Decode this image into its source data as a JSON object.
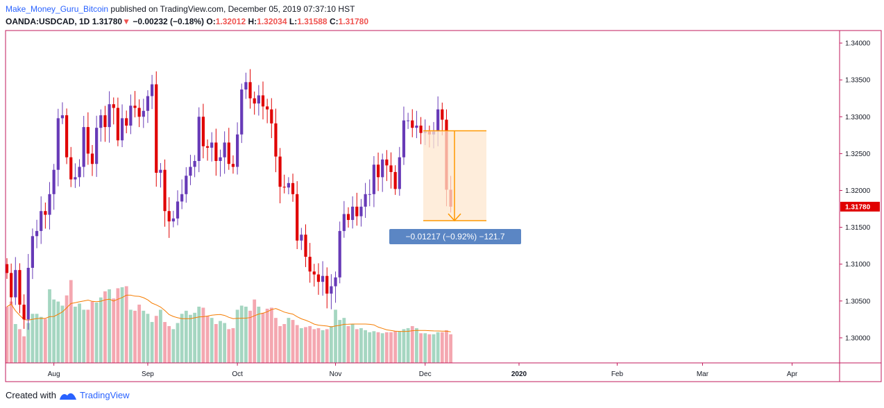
{
  "header": {
    "author": "Make_Money_Guru_Bitcoin",
    "published": "published on TradingView.com, December 05, 2019 07:37:10 HST",
    "symbol": "OANDA:USDCAD, 1D",
    "last": "1.31780",
    "arrow": "▼",
    "change": "−0.00232 (−0.18%)",
    "o_label": "O:",
    "o_value": "1.32012",
    "h_label": "H:",
    "h_value": "1.32034",
    "l_label": "L:",
    "l_value": "1.31588",
    "c_label": "C:",
    "c_value": "1.31780"
  },
  "footer": {
    "created_with": "Created with",
    "brand": "TradingView"
  },
  "colors": {
    "up": "#673ab7",
    "down": "#e00000",
    "vol_up": "#a5d6c1",
    "vol_down": "#f4a7b0",
    "ma": "#f57c00",
    "frame": "#c2185b",
    "measure": "#ff9800",
    "label_bg": "#5b86c4"
  },
  "chart_data": {
    "type": "candlestick",
    "ylim": [
      1.2966,
      1.3417
    ],
    "y_ticks": [
      1.3,
      1.305,
      1.31,
      1.315,
      1.32,
      1.325,
      1.33,
      1.335,
      1.34
    ],
    "y_tick_labels": [
      "1.30000",
      "1.30500",
      "1.31000",
      "1.31500",
      "1.32000",
      "1.32500",
      "1.33000",
      "1.33500",
      "1.34000"
    ],
    "x_ticks": [
      {
        "label": "Aug",
        "index": 11
      },
      {
        "label": "Sep",
        "index": 33
      },
      {
        "label": "Oct",
        "index": 54
      },
      {
        "label": "Nov",
        "index": 77
      },
      {
        "label": "Dec",
        "index": 98
      },
      {
        "label": "2020",
        "index": 120
      },
      {
        "label": "Feb",
        "index": 143
      },
      {
        "label": "Mar",
        "index": 163
      },
      {
        "label": "Apr",
        "index": 184
      }
    ],
    "last_price_label": "1.31780",
    "last_price": 1.3178,
    "closes": [
      1.3088,
      1.3055,
      1.3092,
      1.3045,
      1.3025,
      1.3095,
      1.3138,
      1.3145,
      1.3172,
      1.3167,
      1.3195,
      1.3228,
      1.3298,
      1.3302,
      1.3245,
      1.3215,
      1.3218,
      1.3232,
      1.3286,
      1.325,
      1.3236,
      1.3285,
      1.3302,
      1.3286,
      1.3317,
      1.3312,
      1.3268,
      1.3298,
      1.3288,
      1.3315,
      1.3312,
      1.33,
      1.3308,
      1.3328,
      1.3344,
      1.3224,
      1.3228,
      1.3172,
      1.3158,
      1.3162,
      1.3185,
      1.3195,
      1.322,
      1.3232,
      1.324,
      1.33,
      1.326,
      1.3258,
      1.3265,
      1.324,
      1.3245,
      1.3265,
      1.3236,
      1.3232,
      1.3276,
      1.3337,
      1.3347,
      1.3325,
      1.3318,
      1.3329,
      1.3314,
      1.331,
      1.3291,
      1.3246,
      1.3205,
      1.3204,
      1.321,
      1.3195,
      1.3132,
      1.314,
      1.311,
      1.309,
      1.3086,
      1.3076,
      1.3084,
      1.306,
      1.307,
      1.3082,
      1.3145,
      1.3168,
      1.316,
      1.3178,
      1.3165,
      1.3178,
      1.3195,
      1.3195,
      1.3235,
      1.3218,
      1.3242,
      1.3234,
      1.3225,
      1.3202,
      1.3245,
      1.3295,
      1.3295,
      1.3285,
      1.3288,
      1.3278,
      1.328,
      1.3276,
      1.328,
      1.331,
      1.3296,
      1.3201,
      1.3178
    ],
    "volumes": [
      55,
      60,
      38,
      33,
      26,
      39,
      48,
      48,
      45,
      43,
      72,
      62,
      60,
      56,
      66,
      81,
      55,
      58,
      52,
      52,
      60,
      59,
      64,
      70,
      72,
      63,
      73,
      74,
      75,
      52,
      51,
      57,
      51,
      48,
      40,
      46,
      52,
      40,
      36,
      33,
      39,
      48,
      51,
      47,
      49,
      55,
      54,
      46,
      44,
      38,
      41,
      39,
      33,
      34,
      52,
      56,
      55,
      51,
      62,
      55,
      49,
      53,
      54,
      44,
      36,
      38,
      44,
      42,
      37,
      34,
      35,
      36,
      33,
      34,
      32,
      33,
      36,
      52,
      42,
      44,
      36,
      38,
      33,
      34,
      32,
      30,
      31,
      30,
      29,
      30,
      30,
      31,
      31,
      33,
      34,
      36,
      34,
      29,
      29,
      28,
      28,
      30,
      30,
      32,
      28
    ]
  }
}
